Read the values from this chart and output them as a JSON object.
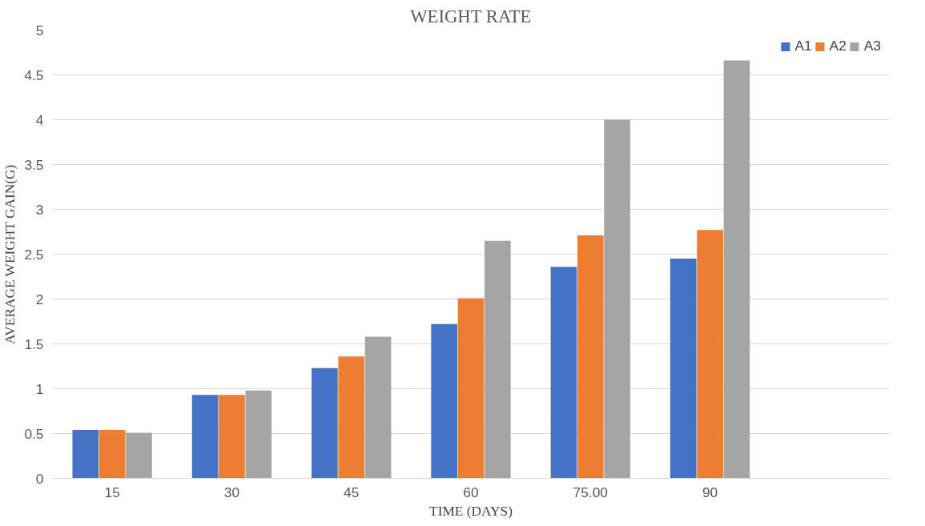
{
  "chart_data": {
    "type": "bar",
    "title": "WEIGHT RATE",
    "xlabel": "TIME (DAYS)",
    "ylabel": "AVERAGE WEIGHT GAIN(G)",
    "categories": [
      "15",
      "30",
      "45",
      "60",
      "75.00",
      "90",
      null
    ],
    "series": [
      {
        "name": "A1",
        "color": "#4472c4",
        "values": [
          0.54,
          0.93,
          1.23,
          1.72,
          2.36,
          2.45,
          null
        ]
      },
      {
        "name": "A2",
        "color": "#ed7d31",
        "values": [
          0.54,
          0.93,
          1.36,
          2.01,
          2.71,
          2.77,
          null
        ]
      },
      {
        "name": "A3",
        "color": "#a5a5a5",
        "values": [
          0.51,
          0.98,
          1.58,
          2.65,
          4.0,
          4.66,
          null
        ]
      }
    ],
    "ylim": [
      0,
      5
    ],
    "yticks": [
      0,
      0.5,
      1,
      1.5,
      2,
      2.5,
      3,
      3.5,
      4,
      4.5,
      5
    ],
    "grid": "y",
    "legend": "top right"
  }
}
